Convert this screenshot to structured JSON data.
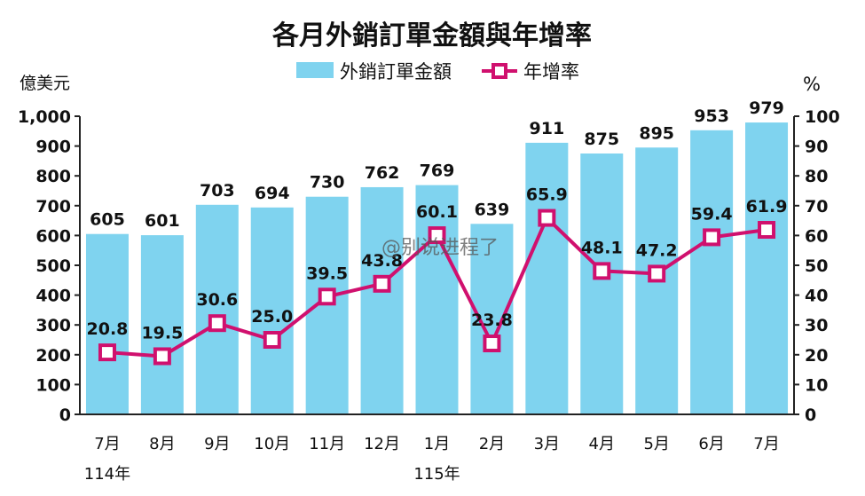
{
  "chart_data": {
    "type": "bar",
    "title": "各月外銷訂單金額與年增率",
    "y_left_unit": "億美元",
    "y_right_unit": "%",
    "y_left_range": [
      0,
      1000
    ],
    "y_right_range": [
      0,
      100
    ],
    "y_left_ticks": [
      "0",
      "100",
      "200",
      "300",
      "400",
      "500",
      "600",
      "700",
      "800",
      "900",
      "1,000"
    ],
    "y_right_ticks": [
      "0",
      "10",
      "20",
      "30",
      "40",
      "50",
      "60",
      "70",
      "80",
      "90",
      "100"
    ],
    "categories": [
      "7月",
      "8月",
      "9月",
      "10月",
      "11月",
      "12月",
      "1月",
      "2月",
      "3月",
      "4月",
      "5月",
      "6月",
      "7月"
    ],
    "year_labels": [
      {
        "text": "114年",
        "index": 0
      },
      {
        "text": "115年",
        "index": 6
      }
    ],
    "series": [
      {
        "name": "外銷訂單金額",
        "type": "bar",
        "axis": "left",
        "color": "#7fd3ef",
        "values": [
          605,
          601,
          703,
          694,
          730,
          762,
          769,
          639,
          911,
          875,
          895,
          953,
          979
        ]
      },
      {
        "name": "年增率",
        "type": "line",
        "axis": "right",
        "color": "#d0106e",
        "values": [
          20.8,
          19.5,
          30.6,
          25.0,
          39.5,
          43.8,
          60.1,
          23.8,
          65.9,
          48.1,
          47.2,
          59.4,
          61.9
        ]
      }
    ],
    "bar_labels": [
      "605",
      "601",
      "703",
      "694",
      "730",
      "762",
      "769",
      "639",
      "911",
      "875",
      "895",
      "953",
      "979"
    ],
    "line_labels": [
      "20.8",
      "19.5",
      "30.6",
      "25.0",
      "39.5",
      "43.8",
      "60.1",
      "23.8",
      "65.9",
      "48.1",
      "47.2",
      "59.4",
      "61.9"
    ],
    "legend_position": "top-center",
    "grid": false
  },
  "watermark": "@别说进程了"
}
